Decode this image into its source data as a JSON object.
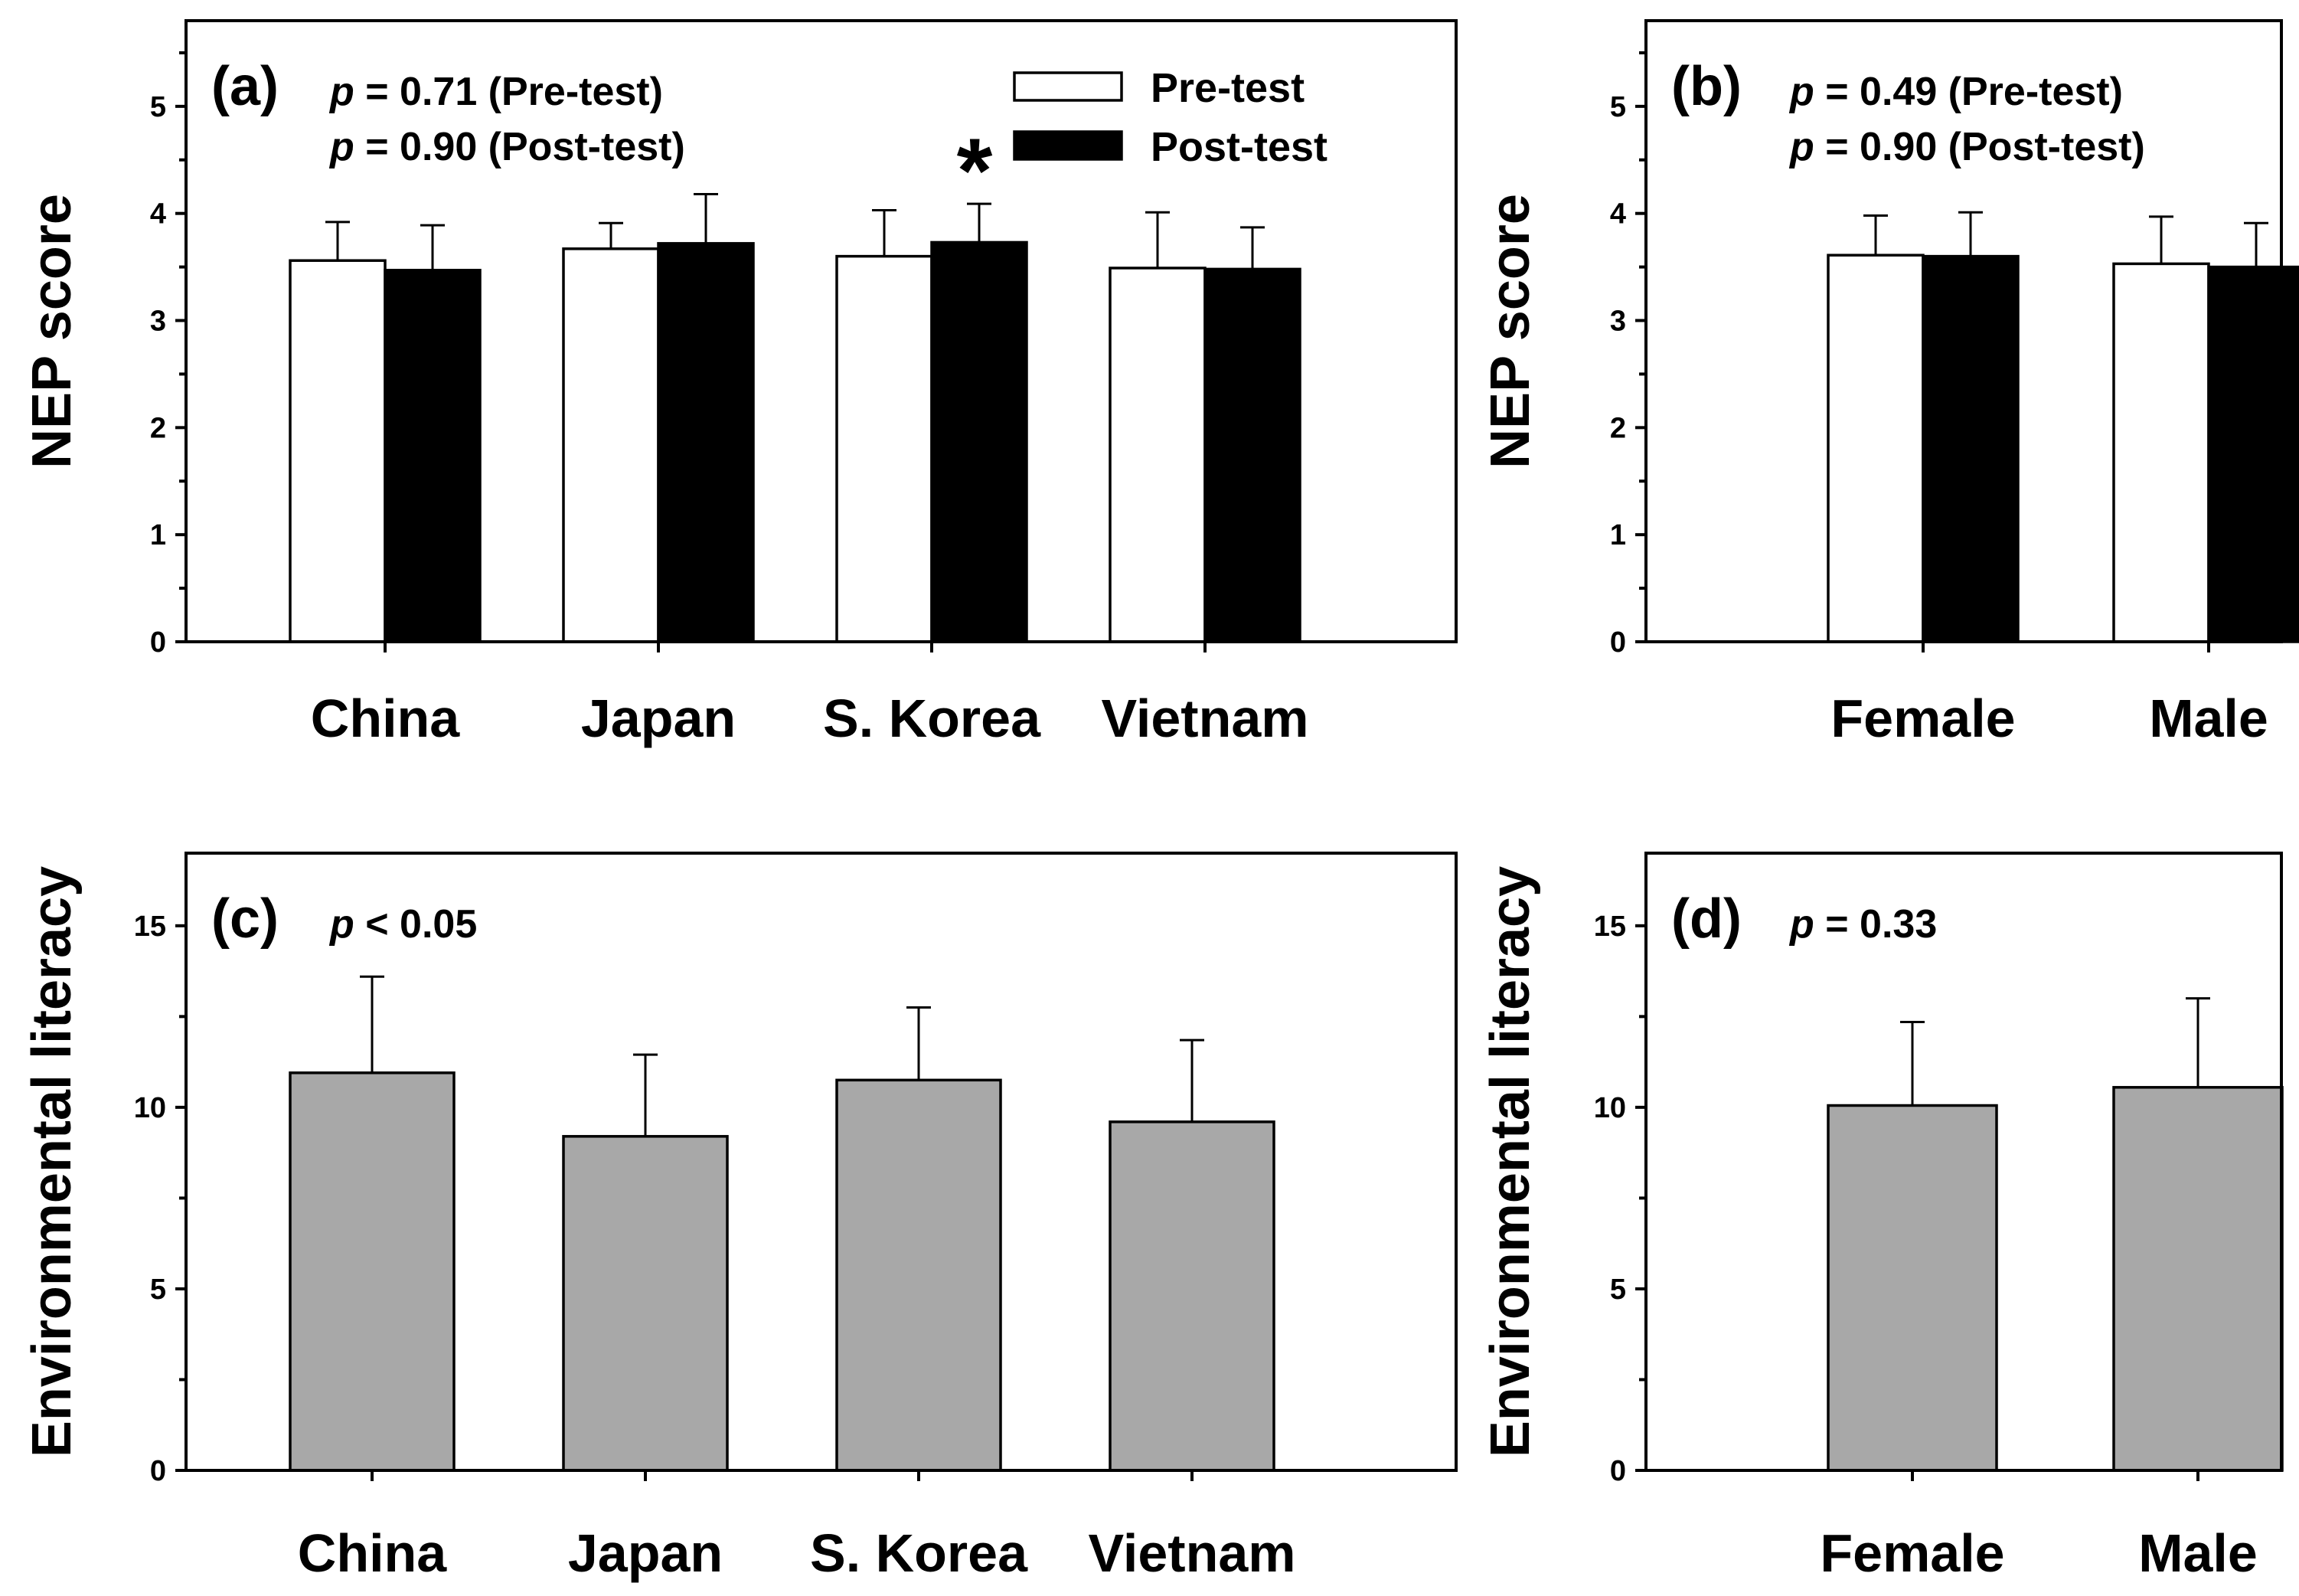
{
  "figure": "Four-panel bar chart of NEP score and environmental literacy",
  "colors": {
    "pre": "#ffffff",
    "post": "#000000",
    "single": "#a8a8a8",
    "axis": "#000000"
  },
  "legend": {
    "pre": "Pre-test",
    "post": "Post-test"
  },
  "chart_data": [
    {
      "id": "a",
      "type": "bar",
      "panel_label": "(a)",
      "stats": [
        {
          "p": "p",
          "text": " = 0.71 (Pre-test)"
        },
        {
          "p": "p",
          "text": " = 0.90 (Post-test)"
        }
      ],
      "ylabel": "NEP score",
      "ylim": [
        0,
        5.8
      ],
      "yticks": [
        0,
        1,
        2,
        3,
        4,
        5
      ],
      "categories": [
        "China",
        "Japan",
        "S. Korea",
        "Vietnam"
      ],
      "series": [
        {
          "name": "Pre-test",
          "color": "#ffffff",
          "values": [
            3.56,
            3.67,
            3.6,
            3.49
          ],
          "errors": [
            0.36,
            0.24,
            0.43,
            0.52
          ]
        },
        {
          "name": "Post-test",
          "color": "#000000",
          "values": [
            3.47,
            3.72,
            3.73,
            3.48
          ],
          "errors": [
            0.42,
            0.46,
            0.36,
            0.39
          ]
        }
      ],
      "annotations": [
        {
          "text": "*",
          "category": "S. Korea",
          "series": "Post-test"
        }
      ],
      "legend": true
    },
    {
      "id": "b",
      "type": "bar",
      "panel_label": "(b)",
      "stats": [
        {
          "p": "p",
          "text": " = 0.49 (Pre-test)"
        },
        {
          "p": "p",
          "text": " = 0.90 (Post-test)"
        }
      ],
      "ylabel": "NEP score",
      "ylim": [
        0,
        5.8
      ],
      "yticks": [
        0,
        1,
        2,
        3,
        4,
        5
      ],
      "categories": [
        "Female",
        "Male"
      ],
      "series": [
        {
          "name": "Pre-test",
          "color": "#ffffff",
          "values": [
            3.61,
            3.53
          ],
          "errors": [
            0.37,
            0.44
          ]
        },
        {
          "name": "Post-test",
          "color": "#000000",
          "values": [
            3.6,
            3.5
          ],
          "errors": [
            0.41,
            0.41
          ]
        }
      ],
      "annotations": [],
      "legend": false
    },
    {
      "id": "c",
      "type": "bar",
      "panel_label": "(c)",
      "stats": [
        {
          "p": "p",
          "text": " < 0.05"
        }
      ],
      "ylabel": "Environmental literacy",
      "ylim": [
        0,
        17
      ],
      "yticks": [
        0,
        5,
        10,
        15
      ],
      "categories": [
        "China",
        "Japan",
        "S. Korea",
        "Vietnam"
      ],
      "series": [
        {
          "name": "",
          "color": "#a8a8a8",
          "values": [
            10.95,
            9.2,
            10.75,
            9.6
          ],
          "errors": [
            2.65,
            2.25,
            2.0,
            2.25
          ]
        }
      ],
      "annotations": [],
      "legend": false
    },
    {
      "id": "d",
      "type": "bar",
      "panel_label": "(d)",
      "stats": [
        {
          "p": "p",
          "text": " = 0.33"
        }
      ],
      "ylabel": "Environmental literacy",
      "ylim": [
        0,
        17
      ],
      "yticks": [
        0,
        5,
        10,
        15
      ],
      "categories": [
        "Female",
        "Male"
      ],
      "series": [
        {
          "name": "",
          "color": "#a8a8a8",
          "values": [
            10.05,
            10.55
          ],
          "errors": [
            2.3,
            2.45
          ]
        }
      ],
      "annotations": [],
      "legend": false
    }
  ]
}
